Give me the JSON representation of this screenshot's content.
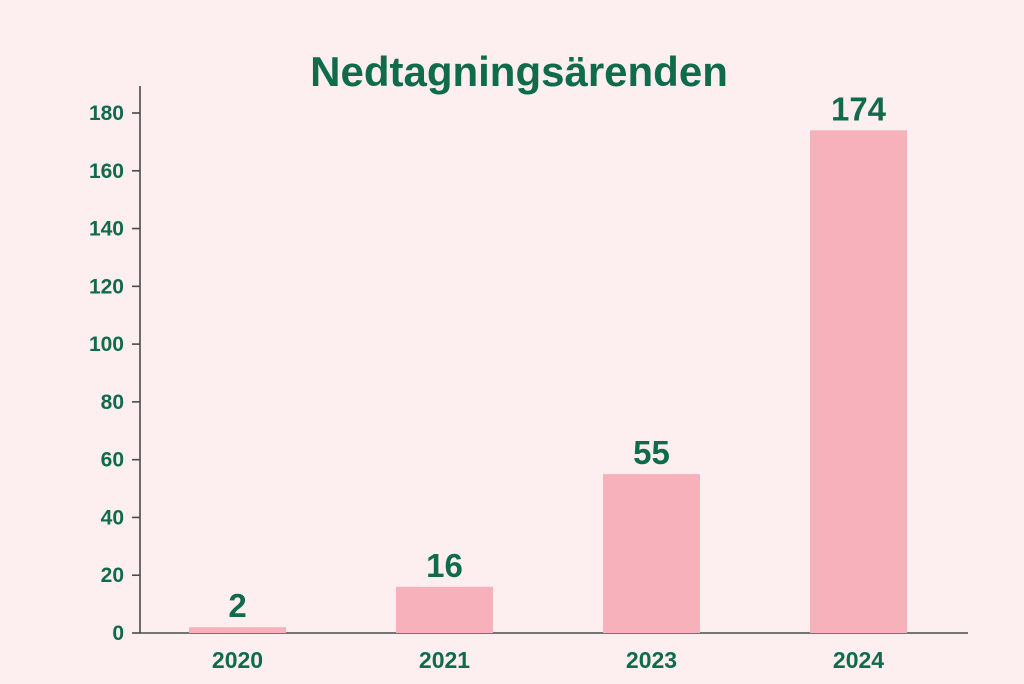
{
  "chart_data": {
    "type": "bar",
    "title": "Nedtagningsärenden",
    "xlabel": "",
    "ylabel": "",
    "categories": [
      "2020",
      "2021",
      "2023",
      "2024"
    ],
    "values": [
      2,
      16,
      55,
      174
    ],
    "data_labels": [
      "2",
      "16",
      "55",
      "174"
    ],
    "ylim": [
      0,
      180
    ],
    "yticks": [
      0,
      20,
      40,
      60,
      80,
      100,
      120,
      140,
      160,
      180
    ],
    "grid": false,
    "legend": "none",
    "colors": {
      "bar": "#f7b1bb",
      "text": "#0f6b4a",
      "background": "#fdeeef",
      "axis": "#4a4a4a"
    }
  }
}
